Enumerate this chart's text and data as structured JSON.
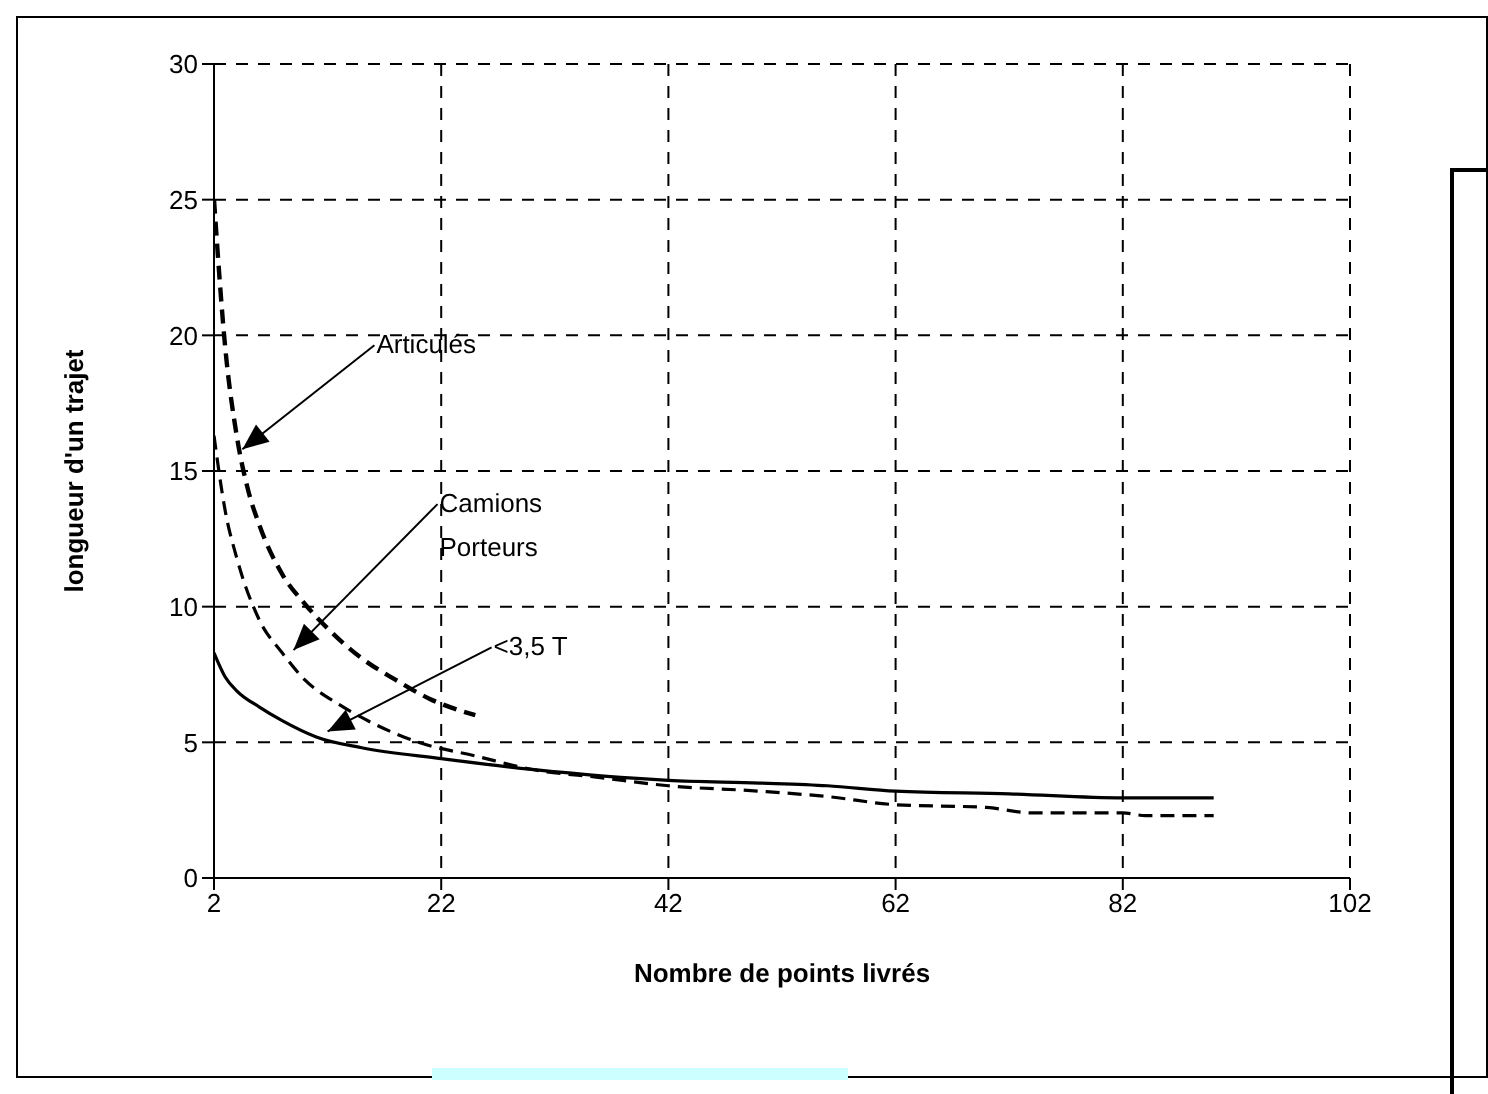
{
  "chart_data": {
    "type": "line",
    "xlabel": "Nombre de points livrés",
    "ylabel": "longueur d'un trajet",
    "xlim": [
      2,
      102
    ],
    "xticks": [
      2,
      22,
      42,
      62,
      82,
      102
    ],
    "ylim": [
      0,
      30
    ],
    "yticks": [
      0,
      5,
      10,
      15,
      20,
      25,
      30
    ],
    "grid": true,
    "marker": "none",
    "series": [
      {
        "color": "#000000",
        "line_style": "dashed",
        "x": [
          2,
          3,
          4,
          5,
          6,
          8,
          10,
          12,
          15,
          18,
          21,
          25
        ],
        "values": [
          25,
          19.5,
          16.3,
          14.3,
          13,
          11.2,
          10.1,
          9.2,
          8.1,
          7.3,
          6.6,
          6
        ]
      },
      {
        "color": "#000000",
        "line_style": "dashed",
        "x": [
          2,
          3,
          4,
          6,
          8,
          10,
          13,
          16,
          20,
          25,
          30,
          36,
          42,
          50,
          56,
          62,
          70,
          74,
          82,
          84,
          90
        ],
        "values": [
          16.3,
          13.5,
          11.8,
          9.5,
          8.3,
          7.3,
          6.4,
          5.7,
          5,
          4.5,
          4,
          3.7,
          3.4,
          3.2,
          3,
          2.7,
          2.6,
          2.4,
          2.4,
          2.3,
          2.3
        ]
      },
      {
        "color": "#000000",
        "line_style": "solid",
        "x": [
          2,
          3,
          4,
          6,
          8,
          11,
          15,
          22,
          30,
          42,
          50,
          56,
          62,
          72,
          82,
          90
        ],
        "values": [
          8.3,
          7.4,
          6.9,
          6.3,
          5.8,
          5.2,
          4.8,
          4.4,
          4,
          3.6,
          3.5,
          3.4,
          3.2,
          3.1,
          2.95,
          2.95
        ]
      }
    ],
    "annotations": [
      {
        "text": "Articulés",
        "x": 4.5,
        "y": 15.8
      },
      {
        "text": "Camions Porteurs",
        "x": 9,
        "y": 8.4
      },
      {
        "text": "<3,5 T",
        "x": 12,
        "y": 5.4
      }
    ]
  }
}
